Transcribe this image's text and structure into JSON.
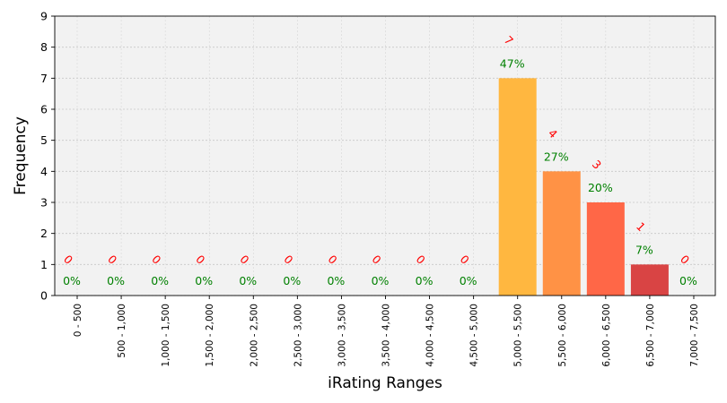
{
  "chart_data": {
    "type": "bar",
    "xlabel": "iRating Ranges",
    "ylabel": "Frequency",
    "ylim": [
      0,
      9
    ],
    "yticks": [
      0,
      1,
      2,
      3,
      4,
      5,
      6,
      7,
      8,
      9
    ],
    "grid": true,
    "categories": [
      "0 - 500",
      "500 - 1,000",
      "1,000 - 1,500",
      "1,500 - 2,000",
      "2,000 - 2,500",
      "2,500 - 3,000",
      "3,000 - 3,500",
      "3,500 - 4,000",
      "4,000 - 4,500",
      "4,500 - 5,000",
      "5,000 - 5,500",
      "5,500 - 6,000",
      "6,000 - 6,500",
      "6,500 - 7,000",
      "7,000 - 7,500"
    ],
    "values": [
      0,
      0,
      0,
      0,
      0,
      0,
      0,
      0,
      0,
      0,
      7,
      4,
      3,
      1,
      0
    ],
    "count_labels": [
      "0",
      "0",
      "0",
      "0",
      "0",
      "0",
      "0",
      "0",
      "0",
      "0",
      "7",
      "4",
      "3",
      "1",
      "0"
    ],
    "percent_labels": [
      "0%",
      "0%",
      "0%",
      "0%",
      "0%",
      "0%",
      "0%",
      "0%",
      "0%",
      "0%",
      "47%",
      "27%",
      "20%",
      "7%",
      "0%"
    ],
    "bar_colors": [
      "#ffb74d",
      "#ffb74d",
      "#ffb74d",
      "#ffb74d",
      "#ffb74d",
      "#ffb74d",
      "#ffb74d",
      "#ffb74d",
      "#ffb74d",
      "#ffb74d",
      "#ffb740",
      "#ff9245",
      "#ff6747",
      "#d94444",
      "#ffb74d"
    ],
    "count_label_color": "#ff0000",
    "percent_label_color": "#008000",
    "plot_background": "#f2f2f2"
  }
}
